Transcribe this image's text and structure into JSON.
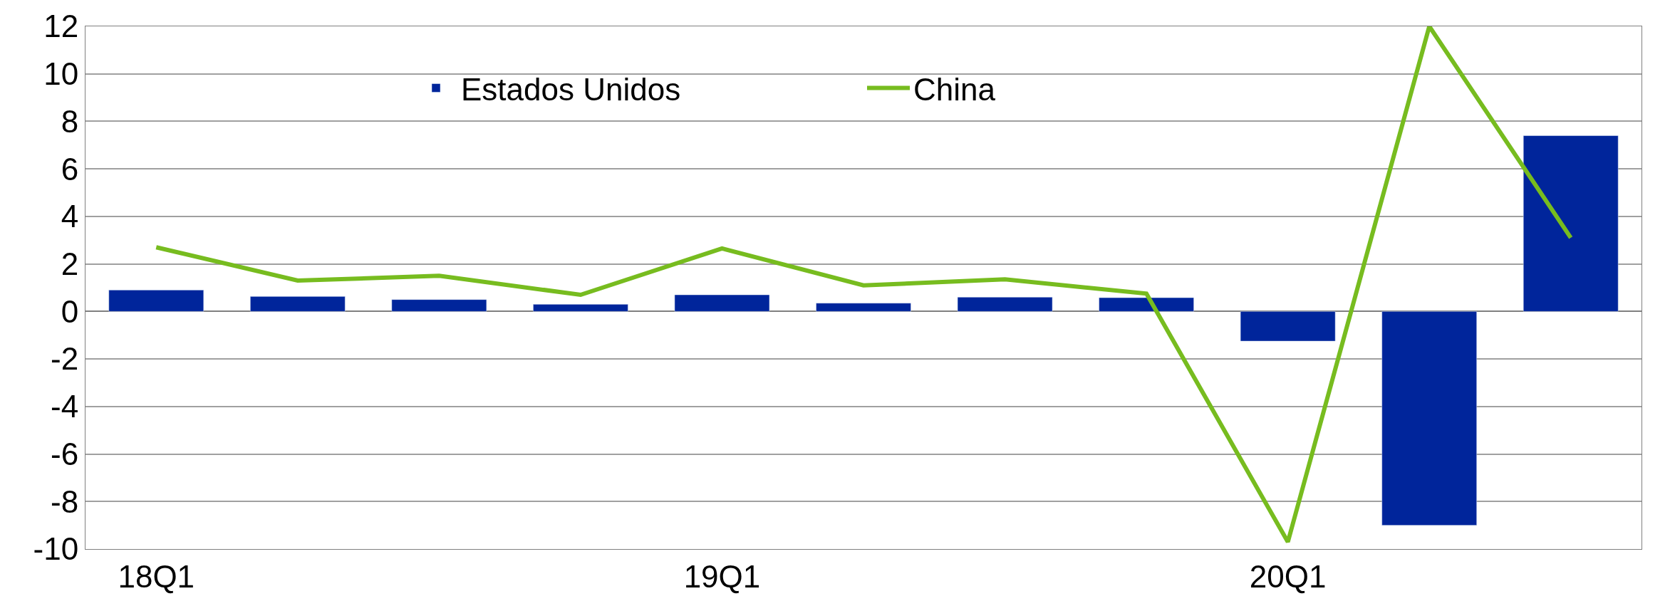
{
  "chart_data": {
    "type": "bar",
    "categories": [
      "18Q1",
      null,
      null,
      null,
      "19Q1",
      null,
      null,
      null,
      "20Q1",
      null,
      null
    ],
    "series": [
      {
        "name": "Estados Unidos",
        "color": "#00259b",
        "values": [
          0.9,
          0.63,
          0.5,
          0.3,
          0.7,
          0.35,
          0.6,
          0.58,
          -1.25,
          -9.0,
          7.4
        ]
      },
      {
        "name": "China",
        "type": "line",
        "color": "#77bc1f",
        "values": [
          2.7,
          1.3,
          1.5,
          0.7,
          2.65,
          1.1,
          1.35,
          0.75,
          -9.7,
          12.0,
          3.1
        ]
      }
    ],
    "ylim": [
      -10,
      12
    ],
    "yticks": [
      -10,
      -8,
      -6,
      -4,
      -2,
      0,
      2,
      4,
      6,
      8,
      10,
      12
    ],
    "grid": "y",
    "legend": "top",
    "marker": "none",
    "line_style": "solid"
  }
}
